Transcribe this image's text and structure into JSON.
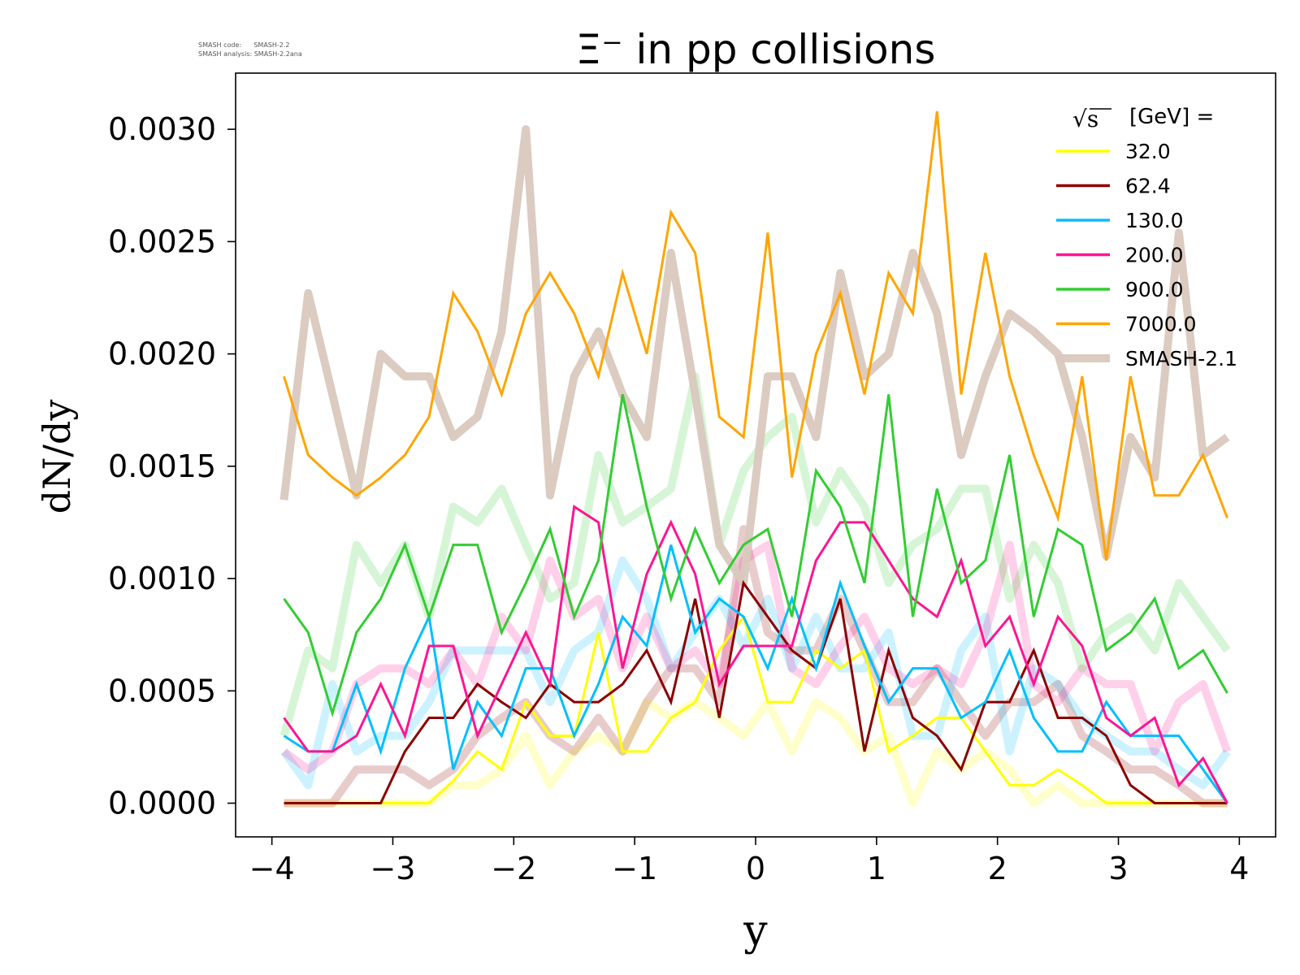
{
  "chart_data": {
    "type": "line",
    "title": "Ξ⁻ in pp collisions",
    "xlabel": "y",
    "ylabel": "dN/dy",
    "xlim": [
      -4.3,
      4.3
    ],
    "ylim": [
      -0.00015,
      0.00325
    ],
    "xticks": [
      -4,
      -3,
      -2,
      -1,
      0,
      1,
      2,
      3,
      4
    ],
    "xtick_labels": [
      "−4",
      "−3",
      "−2",
      "−1",
      "0",
      "1",
      "2",
      "3",
      "4"
    ],
    "yticks": [
      0,
      0.0005,
      0.001,
      0.0015,
      0.002,
      0.0025,
      0.003
    ],
    "ytick_labels": [
      "0.0000",
      "0.0005",
      "0.0010",
      "0.0015",
      "0.0020",
      "0.0025",
      "0.0030"
    ],
    "grid": false,
    "legend_position": "top-right",
    "legend_title": "√s [GeV] =",
    "legend_title_symbol": "√s",
    "legend_title_text": "[GeV] =",
    "notes": [
      "SMASH code:      SMASH-2.2",
      "SMASH analysis: SMASH-2.2ana"
    ],
    "x": [
      -3.9,
      -3.7,
      -3.5,
      -3.3,
      -3.1,
      -2.9,
      -2.7,
      -2.5,
      -2.3,
      -2.1,
      -1.9,
      -1.7,
      -1.5,
      -1.3,
      -1.1,
      -0.9,
      -0.7,
      -0.5,
      -0.3,
      -0.1,
      0.1,
      0.3,
      0.5,
      0.7,
      0.9,
      1.1,
      1.3,
      1.5,
      1.7,
      1.9,
      2.1,
      2.3,
      2.5,
      2.7,
      2.9,
      3.1,
      3.3,
      3.5,
      3.7,
      3.9
    ],
    "series": [
      {
        "name": "32.0",
        "color": "#ffff00",
        "values": [
          0,
          0,
          0,
          0,
          0,
          0,
          0,
          0.0001,
          0.00023,
          0.00015,
          0.00045,
          0.0003,
          0.0003,
          0.00076,
          0.00023,
          0.00023,
          0.00038,
          0.00045,
          0.00068,
          0.00083,
          0.00045,
          0.00045,
          0.00068,
          0.0006,
          0.00068,
          0.00023,
          0.0003,
          0.00038,
          0.00038,
          0.00023,
          8e-05,
          8e-05,
          0.00015,
          8e-05,
          0,
          0,
          0,
          0,
          0,
          0
        ]
      },
      {
        "name": "62.4",
        "color": "#8b0000",
        "values": [
          0,
          0,
          0,
          0,
          0,
          0.00023,
          0.00038,
          0.00038,
          0.00053,
          0.00045,
          0.00038,
          0.00053,
          0.00045,
          0.00045,
          0.00053,
          0.00068,
          0.00045,
          0.00091,
          0.00038,
          0.00098,
          0.00083,
          0.00068,
          0.0006,
          0.00091,
          0.00023,
          0.00068,
          0.00038,
          0.0003,
          0.00015,
          0.00045,
          0.00045,
          0.00068,
          0.00038,
          0.00038,
          0.0003,
          8e-05,
          0,
          0,
          0,
          0
        ]
      },
      {
        "name": "130.0",
        "color": "#00bfff",
        "values": [
          0.0003,
          0.00023,
          0.00023,
          0.00053,
          0.00023,
          0.0006,
          0.00083,
          0.00015,
          0.00045,
          0.0003,
          0.0006,
          0.0006,
          0.0003,
          0.00053,
          0.00083,
          0.0007,
          0.00115,
          0.00076,
          0.00091,
          0.00083,
          0.0006,
          0.00091,
          0.0006,
          0.00098,
          0.0007,
          0.00045,
          0.0006,
          0.0006,
          0.00038,
          0.00045,
          0.00068,
          0.00038,
          0.00023,
          0.00023,
          0.00045,
          0.0003,
          0.0003,
          0.0003,
          0.00015,
          0
        ]
      },
      {
        "name": "200.0",
        "color": "#ff1493",
        "values": [
          0.00038,
          0.00023,
          0.00023,
          0.0003,
          0.00053,
          0.0003,
          0.0007,
          0.0007,
          0.0003,
          0.00053,
          0.00076,
          0.00053,
          0.00132,
          0.00125,
          0.0006,
          0.00102,
          0.00125,
          0.00102,
          0.00053,
          0.0007,
          0.0007,
          0.0007,
          0.00108,
          0.00125,
          0.00125,
          0.00108,
          0.00091,
          0.00083,
          0.00108,
          0.0007,
          0.00083,
          0.00053,
          0.00083,
          0.0007,
          0.00038,
          0.0003,
          0.00038,
          8e-05,
          0.0002,
          0
        ]
      },
      {
        "name": "900.0",
        "color": "#32cd32",
        "values": [
          0.00091,
          0.00076,
          0.0004,
          0.00076,
          0.00091,
          0.00115,
          0.00083,
          0.00115,
          0.00115,
          0.00076,
          0.00098,
          0.00122,
          0.00083,
          0.00108,
          0.00182,
          0.00132,
          0.00091,
          0.00122,
          0.00098,
          0.00115,
          0.00122,
          0.00083,
          0.00148,
          0.00132,
          0.00098,
          0.00182,
          0.00083,
          0.0014,
          0.00098,
          0.00108,
          0.00155,
          0.00083,
          0.00122,
          0.00115,
          0.00068,
          0.00076,
          0.00091,
          0.0006,
          0.00068,
          0.00049
        ]
      },
      {
        "name": "7000.0",
        "color": "#ffa500",
        "values": [
          0.0019,
          0.00155,
          0.00145,
          0.00137,
          0.00145,
          0.00155,
          0.00172,
          0.00227,
          0.0021,
          0.00182,
          0.00218,
          0.00236,
          0.00218,
          0.0019,
          0.00236,
          0.002,
          0.00263,
          0.00245,
          0.00172,
          0.00163,
          0.00254,
          0.00145,
          0.002,
          0.00227,
          0.00182,
          0.00236,
          0.00218,
          0.00308,
          0.00182,
          0.00245,
          0.0019,
          0.00155,
          0.00127,
          0.0019,
          0.00108,
          0.0019,
          0.00137,
          0.00137,
          0.00155,
          0.00127
        ]
      }
    ],
    "reference": {
      "name": "SMASH-2.1",
      "color": "#d9c8be",
      "series": [
        {
          "for": "32.0",
          "values": [
            0,
            0,
            0,
            0,
            0,
            0,
            0,
            8e-05,
            8e-05,
            0.00015,
            0.0003,
            8e-05,
            0.00023,
            0.0003,
            0.00023,
            0.00045,
            0.00038,
            0.00045,
            0.00038,
            0.0003,
            0.00045,
            0.00023,
            0.00045,
            0.00038,
            0.00023,
            0.0003,
            0,
            0.00023,
            0.00015,
            0.00023,
            0.00015,
            0,
            8e-05,
            0,
            0,
            0,
            0,
            0,
            0,
            0
          ]
        },
        {
          "for": "62.4",
          "values": [
            0,
            0,
            0,
            0.00015,
            0.00015,
            0.00015,
            8e-05,
            0.00015,
            0.0003,
            0.00038,
            0.00045,
            0.0003,
            0.00023,
            0.00038,
            0.00023,
            0.00045,
            0.0006,
            0.0006,
            0.00045,
            0.00122,
            0.00076,
            0.00068,
            0.00068,
            0.00091,
            0.00068,
            0.00045,
            0.00045,
            0.0006,
            0.00045,
            0.0003,
            0.00045,
            0.00045,
            0.00053,
            0.0003,
            0.00023,
            0.00015,
            0.00015,
            8e-05,
            0,
            0
          ]
        },
        {
          "for": "130.0",
          "values": [
            0.00023,
            8e-05,
            0.00053,
            0.00023,
            0.0003,
            0.0003,
            0.00045,
            0.00068,
            0.00068,
            0.00068,
            0.00068,
            0.00045,
            0.00068,
            0.00076,
            0.00108,
            0.00091,
            0.0006,
            0.00076,
            0.00091,
            0.0007,
            0.00091,
            0.0006,
            0.00083,
            0.0006,
            0.0006,
            0.00076,
            0.0003,
            0.0003,
            0.00068,
            0.00083,
            0.00023,
            0.0006,
            0.00053,
            0.00038,
            0.0003,
            0.00023,
            0.00023,
            0.00015,
            8e-05,
            0.00023
          ]
        },
        {
          "for": "200.0",
          "values": [
            0.00023,
            0.00015,
            0.00023,
            0.00053,
            0.0006,
            0.0006,
            0.00053,
            0.00068,
            0.00053,
            0.00083,
            0.00068,
            0.00108,
            0.00083,
            0.00091,
            0.0006,
            0.00083,
            0.0006,
            0.00068,
            0.00053,
            0.00108,
            0.00115,
            0.0006,
            0.00053,
            0.0007,
            0.00083,
            0.0006,
            0.00053,
            0.0006,
            0.00053,
            0.00076,
            0.00115,
            0.00053,
            0.00045,
            0.0006,
            0.00053,
            0.00053,
            0.00023,
            0.00045,
            0.00053,
            0.00023
          ]
        },
        {
          "for": "900.0",
          "values": [
            0.0003,
            0.00068,
            0.0006,
            0.00115,
            0.00098,
            0.00115,
            0.00083,
            0.00132,
            0.00125,
            0.0014,
            0.00115,
            0.00091,
            0.00098,
            0.00155,
            0.00125,
            0.00132,
            0.0014,
            0.0019,
            0.00115,
            0.00148,
            0.00163,
            0.00172,
            0.00125,
            0.00148,
            0.00132,
            0.00098,
            0.00115,
            0.00122,
            0.0014,
            0.0014,
            0.00091,
            0.00115,
            0.00098,
            0.0006,
            0.00076,
            0.00083,
            0.00068,
            0.00098,
            0.00083,
            0.00068
          ]
        },
        {
          "for": "7000.0",
          "values": [
            0.00135,
            0.00227,
            0.00182,
            0.00137,
            0.002,
            0.0019,
            0.0019,
            0.00163,
            0.00172,
            0.0021,
            0.003,
            0.00137,
            0.0019,
            0.0021,
            0.00182,
            0.00163,
            0.00245,
            0.00182,
            0.00115,
            0.00098,
            0.0019,
            0.0019,
            0.00163,
            0.00236,
            0.0019,
            0.002,
            0.00245,
            0.00218,
            0.00155,
            0.0019,
            0.00218,
            0.0021,
            0.002,
            0.00163,
            0.0011,
            0.00163,
            0.00145,
            0.00254,
            0.00155,
            0.00163
          ]
        }
      ]
    }
  }
}
